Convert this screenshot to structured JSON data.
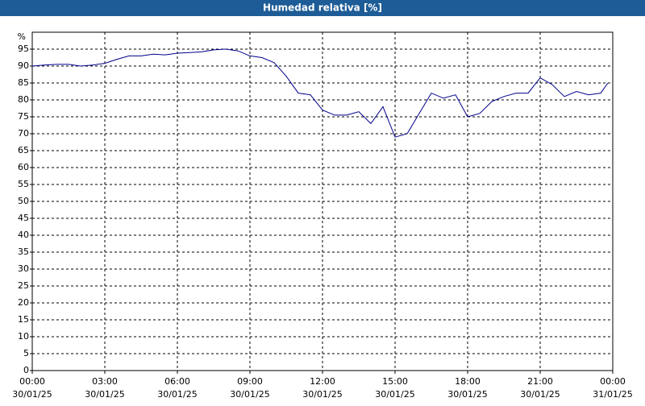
{
  "chart_data": {
    "type": "line",
    "title": "Humedad relativa [%]",
    "y_label": "%",
    "x": [
      0,
      0.5,
      1,
      1.5,
      2,
      2.5,
      3,
      3.5,
      4,
      4.5,
      5,
      5.5,
      6,
      6.5,
      7,
      7.5,
      8,
      8.5,
      9,
      9.5,
      10,
      10.5,
      11,
      11.5,
      12,
      12.5,
      13,
      13.5,
      14,
      14.5,
      15,
      15.5,
      16,
      16.5,
      17,
      17.5,
      18,
      18.5,
      19,
      19.5,
      20,
      20.5,
      21,
      21.5,
      22,
      22.5,
      23,
      23.5,
      23.8
    ],
    "series": [
      {
        "name": "Humedad relativa",
        "color": "#00008b",
        "values": [
          90,
          90.3,
          90.5,
          90.5,
          90,
          90.3,
          90.8,
          92,
          93,
          93,
          93.5,
          93.3,
          93.8,
          94,
          94.2,
          94.8,
          95,
          94.5,
          93,
          92.5,
          91,
          87,
          82,
          81.5,
          77,
          75.5,
          75.5,
          76.5,
          73,
          78,
          69,
          70,
          76,
          82,
          80.5,
          81.5,
          75,
          76,
          79.5,
          81,
          82,
          82,
          86.5,
          84.5,
          81,
          82.5,
          81.5,
          82,
          85
        ]
      }
    ],
    "xlim": [
      0,
      24
    ],
    "xticks": [
      {
        "value": 0,
        "label": "00:00",
        "date": "30/01/25"
      },
      {
        "value": 3,
        "label": "03:00",
        "date": "30/01/25"
      },
      {
        "value": 6,
        "label": "06:00",
        "date": "30/01/25"
      },
      {
        "value": 9,
        "label": "09:00",
        "date": "30/01/25"
      },
      {
        "value": 12,
        "label": "12:00",
        "date": "30/01/25"
      },
      {
        "value": 15,
        "label": "15:00",
        "date": "30/01/25"
      },
      {
        "value": 18,
        "label": "18:00",
        "date": "30/01/25"
      },
      {
        "value": 21,
        "label": "21:00",
        "date": "30/01/25"
      },
      {
        "value": 24,
        "label": "00:00",
        "date": "31/01/25"
      }
    ],
    "ylim": [
      0,
      100
    ],
    "yticks": [
      0,
      5,
      10,
      15,
      20,
      25,
      30,
      35,
      40,
      45,
      50,
      55,
      60,
      65,
      70,
      75,
      80,
      85,
      90,
      95
    ],
    "grid": true
  }
}
